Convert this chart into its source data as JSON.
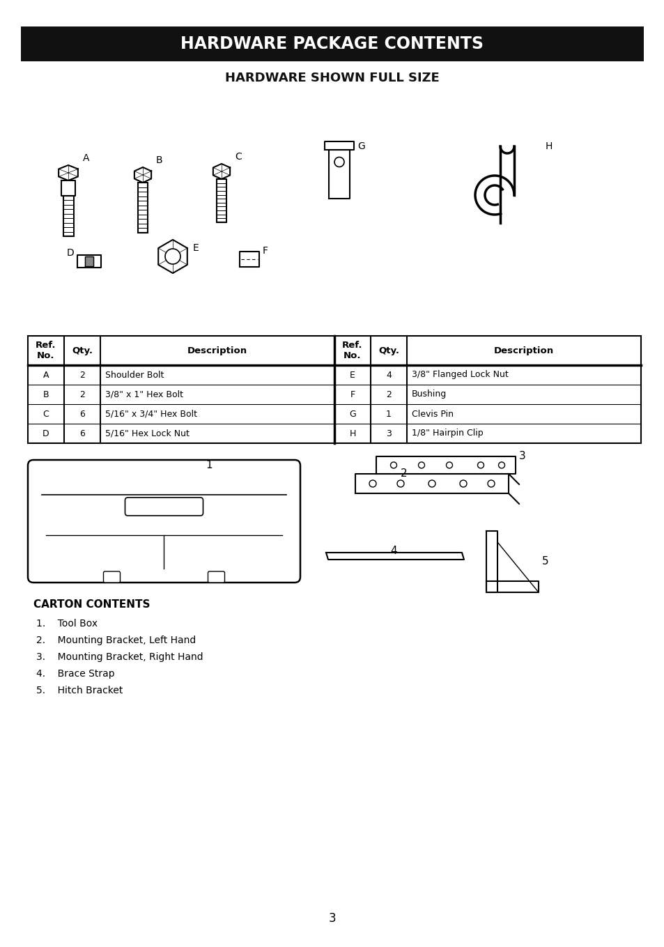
{
  "title_bar_text": "HARDWARE PACKAGE CONTENTS",
  "subtitle": "HARDWARE SHOWN FULL SIZE",
  "title_bar_color": "#111111",
  "title_text_color": "#ffffff",
  "bg_color": "#ffffff",
  "table_rows": [
    [
      "A",
      "2",
      "Shoulder Bolt",
      "E",
      "4",
      "3/8\" Flanged Lock Nut"
    ],
    [
      "B",
      "2",
      "3/8\" x 1\" Hex Bolt",
      "F",
      "2",
      "Bushing"
    ],
    [
      "C",
      "6",
      "5/16\" x 3/4\" Hex Bolt",
      "G",
      "1",
      "Clevis Pin"
    ],
    [
      "D",
      "6",
      "5/16\" Hex Lock Nut",
      "H",
      "3",
      "1/8\" Hairpin Clip"
    ]
  ],
  "carton_title": "CARTON CONTENTS",
  "carton_items": [
    "1.    Tool Box",
    "2.    Mounting Bracket, Left Hand",
    "3.    Mounting Bracket, Right Hand",
    "4.    Brace Strap",
    "5.    Hitch Bracket"
  ],
  "page_number": "3"
}
